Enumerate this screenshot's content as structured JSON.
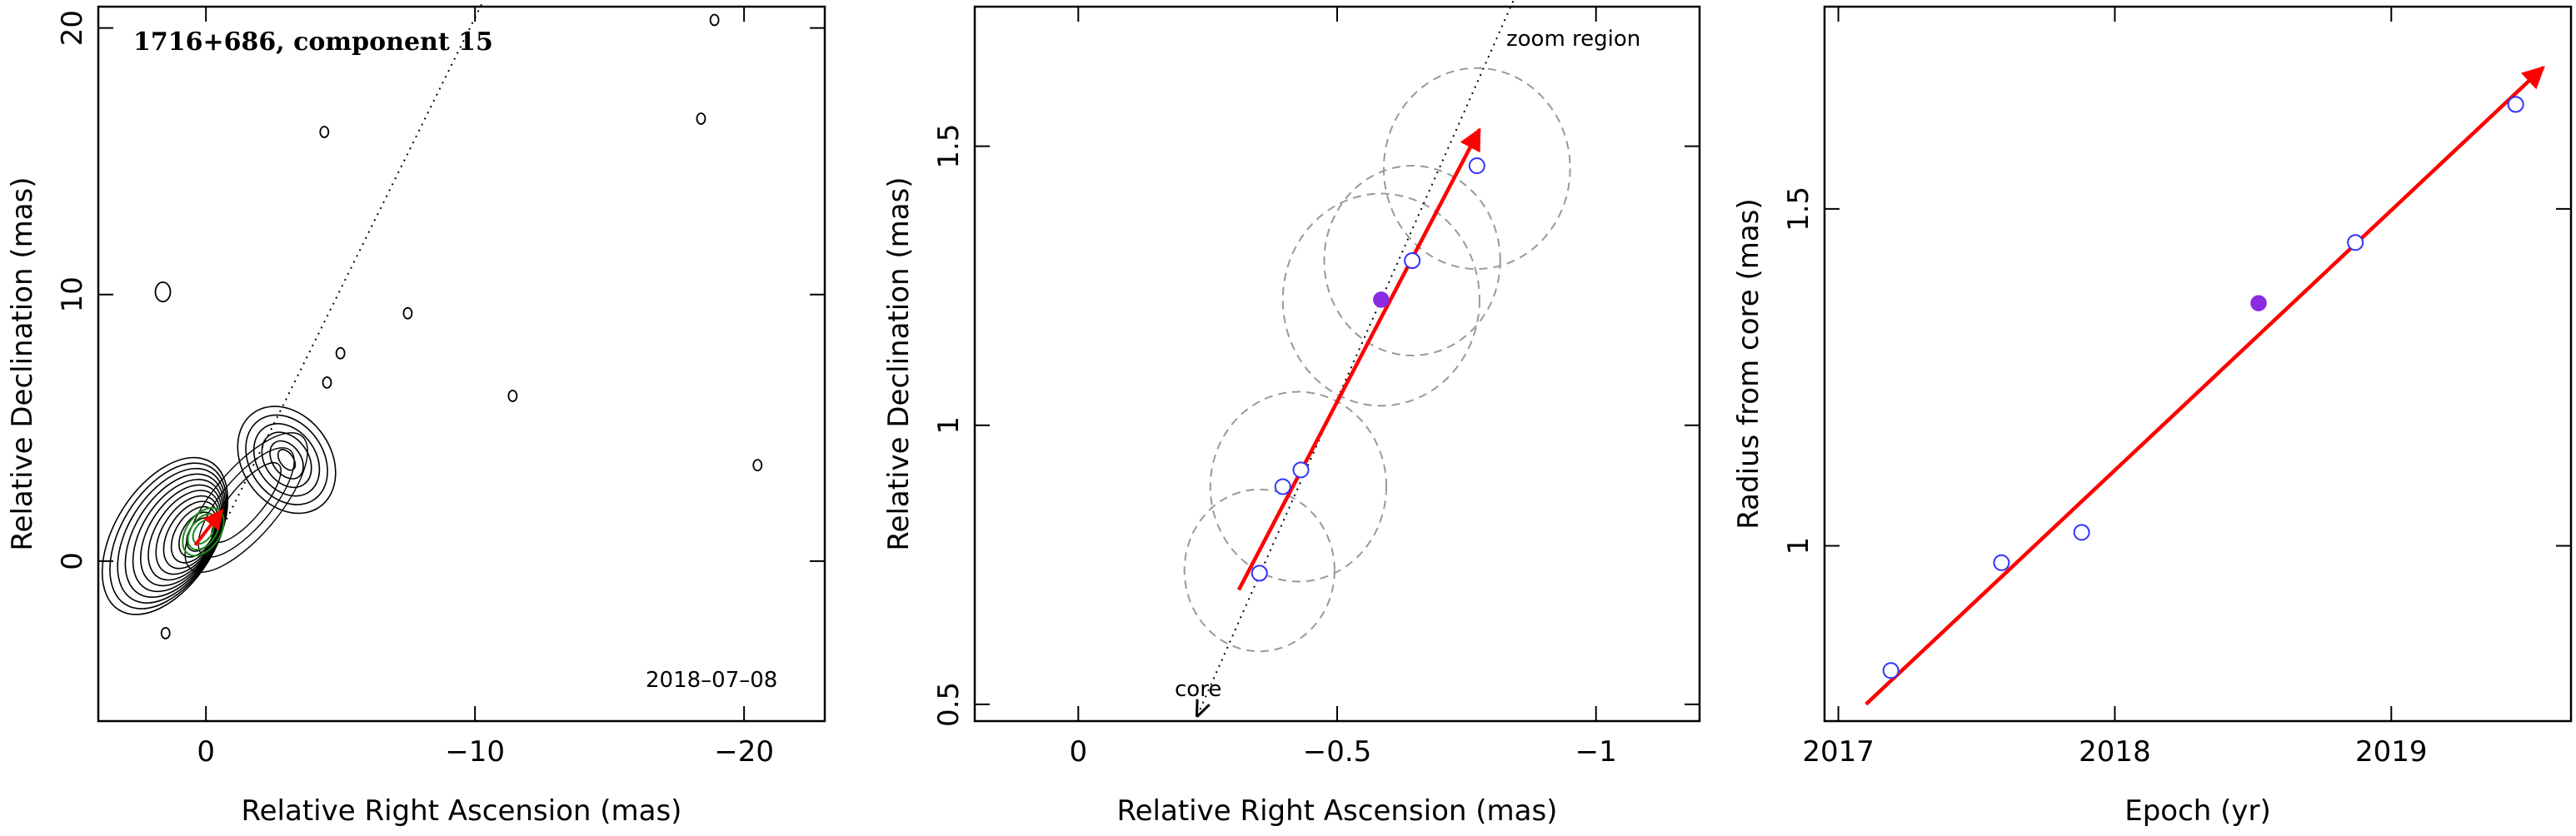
{
  "figure": {
    "panels": [
      {
        "title": "1716+686, component 15",
        "date_label": "2018–07–08",
        "xlabel": "Relative Right Ascension (mas)",
        "ylabel": "Relative Declination (mas)",
        "xticks": [
          {
            "v": 0,
            "label": "0"
          },
          {
            "v": -10,
            "label": "−10"
          },
          {
            "v": -20,
            "label": "−20"
          }
        ],
        "yticks": [
          {
            "v": 0,
            "label": "0"
          },
          {
            "v": 10,
            "label": "10"
          },
          {
            "v": 20,
            "label": "20"
          }
        ]
      },
      {
        "zoom_label": "zoom region",
        "core_label": "core",
        "xlabel": "Relative Right Ascension (mas)",
        "ylabel": "Relative Declination (mas)",
        "xticks": [
          {
            "v": 0,
            "label": "0"
          },
          {
            "v": -0.5,
            "label": "−0.5"
          },
          {
            "v": -1,
            "label": "−1"
          }
        ],
        "yticks": [
          {
            "v": 0.5,
            "label": "0.5"
          },
          {
            "v": 1,
            "label": "1"
          },
          {
            "v": 1.5,
            "label": "1.5"
          }
        ]
      },
      {
        "xlabel": "Epoch (yr)",
        "ylabel": "Radius from core (mas)",
        "xticks": [
          {
            "v": 2017,
            "label": "2017"
          },
          {
            "v": 2018,
            "label": "2018"
          },
          {
            "v": 2019,
            "label": "2019"
          }
        ],
        "yticks": [
          {
            "v": 1,
            "label": "1"
          },
          {
            "v": 1.5,
            "label": "1.5"
          }
        ]
      }
    ]
  },
  "chart_data": [
    {
      "type": "contour",
      "title": "1716+686, component 15",
      "xlabel": "Relative Right Ascension (mas)",
      "ylabel": "Relative Declination (mas)",
      "xlim": [
        4.0,
        -23.0
      ],
      "ylim": [
        -6.0,
        20.8
      ],
      "jet_axis": {
        "from": [
          0,
          0
        ],
        "to": [
          -10.3,
          21
        ]
      },
      "core_position": [
        0.4,
        0.6
      ],
      "epoch_label": "2018–07–08",
      "blobs": [
        {
          "x": -3.0,
          "y": 3.8
        },
        {
          "x": 1.6,
          "y": 10.1
        },
        {
          "x": -4.4,
          "y": 16.1
        },
        {
          "x": -18.9,
          "y": 20.3
        },
        {
          "x": -18.4,
          "y": 16.6
        },
        {
          "x": -7.5,
          "y": 9.3
        },
        {
          "x": -5.0,
          "y": 7.8
        },
        {
          "x": -4.5,
          "y": 6.7
        },
        {
          "x": -11.4,
          "y": 6.2
        },
        {
          "x": -20.5,
          "y": 3.6
        },
        {
          "x": 1.5,
          "y": -2.7
        }
      ]
    },
    {
      "type": "scatter",
      "xlabel": "Relative Right Ascension (mas)",
      "ylabel": "Relative Declination (mas)",
      "xlim": [
        0.2,
        -1.2
      ],
      "ylim": [
        0.47,
        1.75
      ],
      "series": [
        {
          "marker": "open-circle",
          "color": "#3333ff",
          "x": [
            -0.35,
            -0.395,
            -0.43,
            -0.645,
            -0.77
          ],
          "y": [
            0.735,
            0.89,
            0.92,
            1.295,
            1.465
          ]
        },
        {
          "marker": "filled-circle",
          "color": "#8a2be2",
          "x": [
            -0.585
          ],
          "y": [
            1.225
          ]
        }
      ],
      "circles": [
        {
          "x": -0.35,
          "y": 0.74,
          "r": 0.145
        },
        {
          "x": -0.425,
          "y": 0.89,
          "r": 0.17
        },
        {
          "x": -0.585,
          "y": 1.225,
          "r": 0.19
        },
        {
          "x": -0.645,
          "y": 1.295,
          "r": 0.17
        },
        {
          "x": -0.77,
          "y": 1.46,
          "r": 0.18
        }
      ],
      "motion_vector": {
        "color": "#ff0000",
        "from": [
          -0.31,
          0.705
        ],
        "to": [
          -0.775,
          1.53
        ]
      },
      "jet_axis": {
        "from": [
          -0.23,
          0.48
        ],
        "to": [
          -0.84,
          1.76
        ]
      }
    },
    {
      "type": "scatter",
      "xlabel": "Epoch (yr)",
      "ylabel": "Radius from core (mas)",
      "xlim": [
        2016.95,
        2019.65
      ],
      "ylim": [
        0.74,
        1.8
      ],
      "series": [
        {
          "marker": "open-circle",
          "color": "#3333ff",
          "x": [
            2017.19,
            2017.59,
            2017.88,
            2018.87,
            2019.45
          ],
          "y": [
            0.815,
            0.975,
            1.02,
            1.45,
            1.655
          ]
        },
        {
          "marker": "filled-circle",
          "color": "#8a2be2",
          "x": [
            2018.52
          ],
          "y": [
            1.36
          ]
        }
      ],
      "fit_line": {
        "color": "#ff0000",
        "x": [
          2017.1,
          2019.55
        ],
        "y": [
          0.765,
          1.71
        ]
      }
    }
  ]
}
